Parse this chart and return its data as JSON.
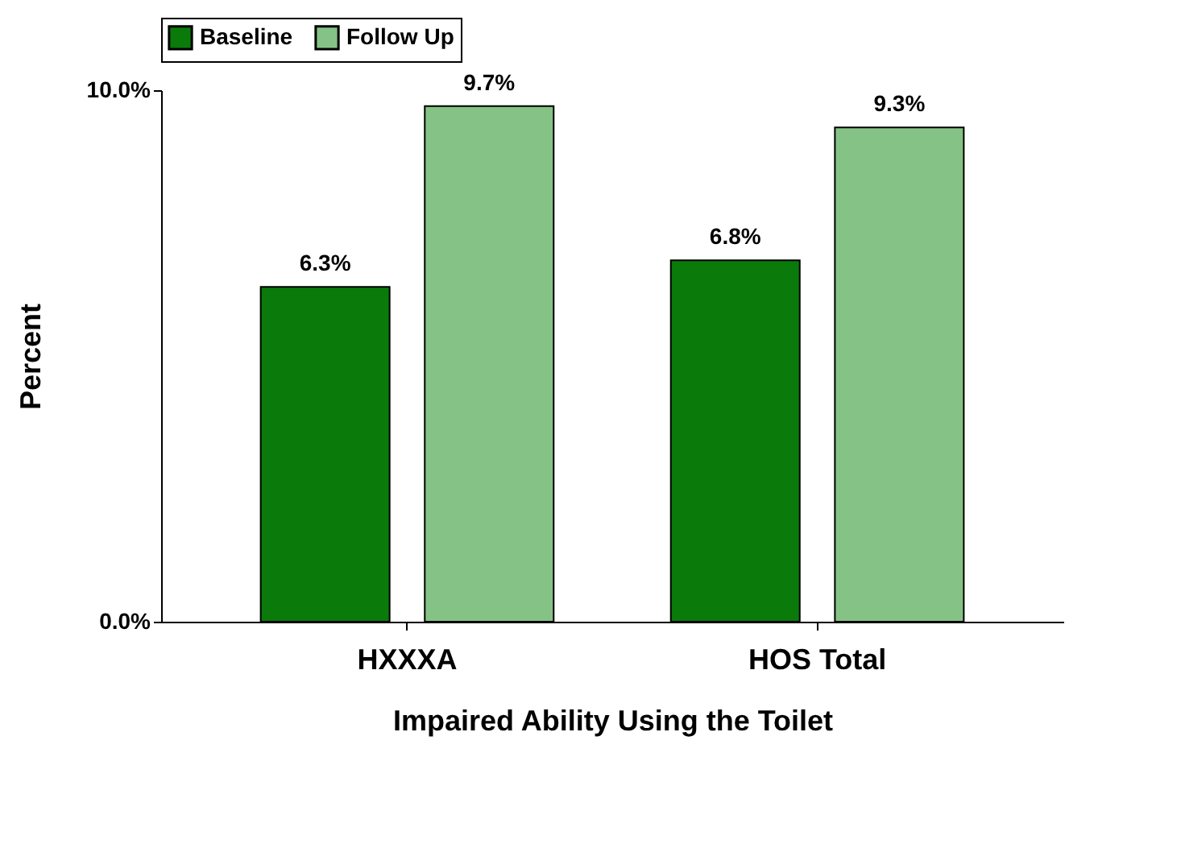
{
  "chart_data": {
    "type": "bar",
    "xlabel": "Impaired Ability Using the Toilet",
    "ylabel": "Percent",
    "categories": [
      "HXXXA",
      "HOS Total"
    ],
    "series": [
      {
        "name": "Baseline",
        "color": "#0a7a0a",
        "values": [
          6.3,
          6.8
        ],
        "value_labels": [
          "6.3%",
          "6.8%"
        ]
      },
      {
        "name": "Follow Up",
        "color": "#85c285",
        "values": [
          9.7,
          9.3
        ],
        "value_labels": [
          "9.7%",
          "9.3%"
        ]
      }
    ],
    "ylim": [
      0,
      10
    ],
    "yticks": [
      {
        "value": 0,
        "label": "0.0%"
      },
      {
        "value": 10,
        "label": "10.0%"
      }
    ],
    "grid": false,
    "legend": "top"
  }
}
